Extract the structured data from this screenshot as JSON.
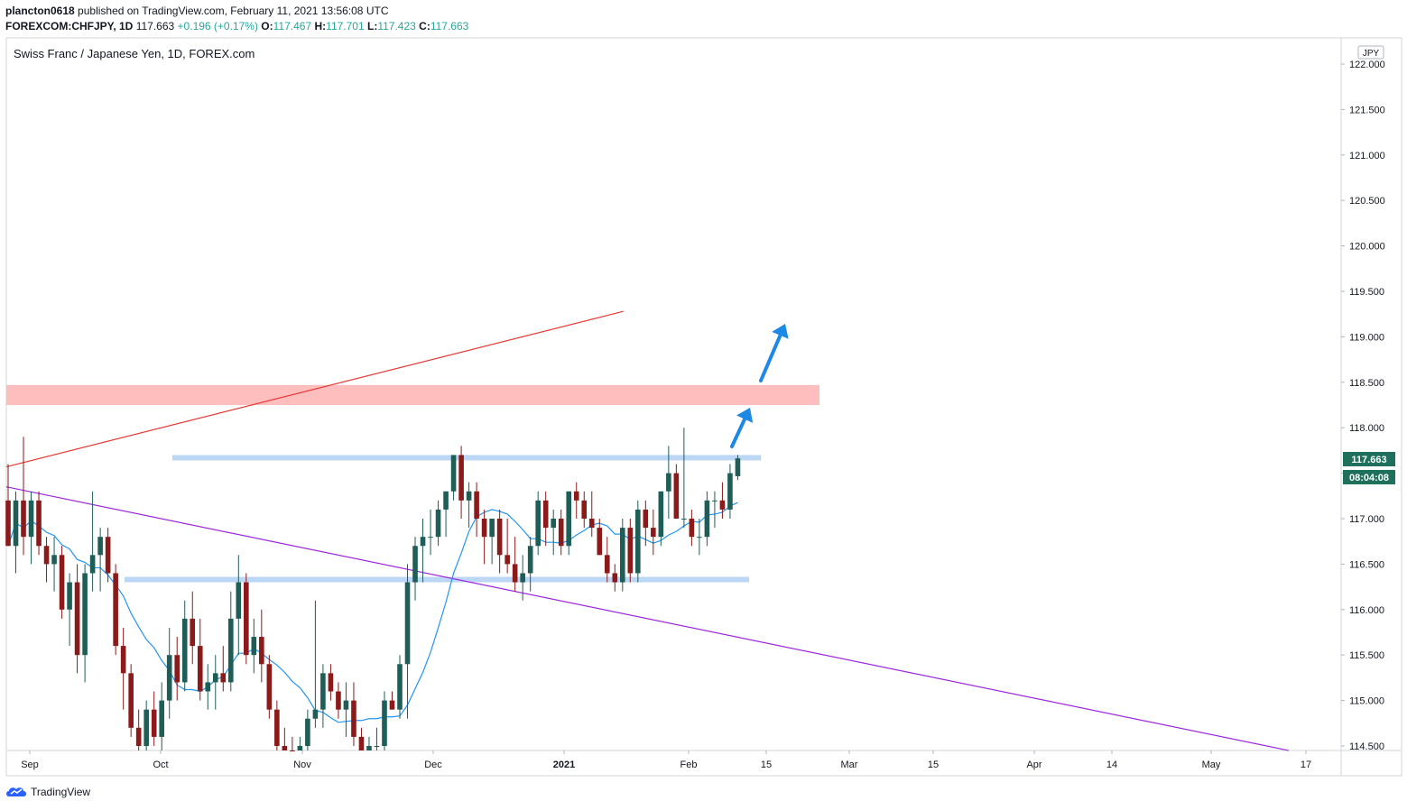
{
  "header": {
    "author": "plancton0618",
    "published_text": "published on TradingView.com, February 11, 2021 13:56:08 UTC",
    "symbol": "FOREXCOM:CHFJPY, 1D",
    "last": "117.663",
    "change": "+0.196 (+0.17%)",
    "o_label": "O:",
    "o_value": "117.467",
    "h_label": "H:",
    "h_value": "117.701",
    "l_label": "L:",
    "l_value": "117.423",
    "c_label": "C:",
    "c_value": "117.663"
  },
  "legend_title": "Swiss Franc / Japanese Yen, 1D, FOREX.com",
  "currency_badge": "JPY",
  "price_badge": "117.663",
  "countdown_badge": "08:04:08",
  "footer": {
    "brand": "TradingView"
  },
  "colors": {
    "up": "#26a69a",
    "down": "#ef5350",
    "candle_up": "#1e5e56",
    "candle_down": "#8b1a1a",
    "ma": "#2196f3",
    "resistance_zone": "#ffb3b3",
    "trendline_red": "#e53935",
    "trendline_purple": "#9c27e0",
    "support_band": "#bcd6f5",
    "arrow": "#1e88e5"
  },
  "chart_data": {
    "type": "candlestick",
    "title": "Swiss Franc / Japanese Yen, 1D, FOREX.com",
    "y_axis": {
      "ticks": [
        "122.000",
        "121.500",
        "121.000",
        "120.500",
        "120.000",
        "119.500",
        "119.000",
        "118.500",
        "118.000",
        "117.500",
        "117.000",
        "116.500",
        "116.000",
        "115.500",
        "115.000",
        "114.500"
      ],
      "ylim": [
        114.5,
        122.1
      ]
    },
    "x_axis": {
      "ticks": [
        "Sep",
        "Oct",
        "Nov",
        "Dec",
        "2021",
        "Feb",
        "15",
        "Mar",
        "15",
        "Apr",
        "14",
        "May",
        "17"
      ]
    },
    "ohlc": [
      [
        117.2,
        117.6,
        116.7,
        116.7
      ],
      [
        116.7,
        117.3,
        116.4,
        117.2
      ],
      [
        117.2,
        117.9,
        116.6,
        116.8
      ],
      [
        116.8,
        117.3,
        116.5,
        117.2
      ],
      [
        117.2,
        117.3,
        116.6,
        116.7
      ],
      [
        116.7,
        116.8,
        116.3,
        116.5
      ],
      [
        116.5,
        116.8,
        116.2,
        116.6
      ],
      [
        116.6,
        116.7,
        115.9,
        116.0
      ],
      [
        116.0,
        116.4,
        115.6,
        116.3
      ],
      [
        116.3,
        116.5,
        115.3,
        115.5
      ],
      [
        115.5,
        116.5,
        115.2,
        116.4
      ],
      [
        116.4,
        117.3,
        116.2,
        116.6
      ],
      [
        116.6,
        116.9,
        116.2,
        116.8
      ],
      [
        116.8,
        116.9,
        116.3,
        116.4
      ],
      [
        116.4,
        116.5,
        115.5,
        115.6
      ],
      [
        115.6,
        115.8,
        114.9,
        115.3
      ],
      [
        115.3,
        115.4,
        114.6,
        114.7
      ],
      [
        114.7,
        114.9,
        114.3,
        114.5
      ],
      [
        114.5,
        115.0,
        114.3,
        114.9
      ],
      [
        114.9,
        115.1,
        114.5,
        114.6
      ],
      [
        114.6,
        115.2,
        114.4,
        115.0
      ],
      [
        115.0,
        115.8,
        114.8,
        115.5
      ],
      [
        115.5,
        115.7,
        115.0,
        115.2
      ],
      [
        115.2,
        116.1,
        115.1,
        115.9
      ],
      [
        115.9,
        116.2,
        115.4,
        115.6
      ],
      [
        115.6,
        115.9,
        115.0,
        115.1
      ],
      [
        115.1,
        115.4,
        114.9,
        115.2
      ],
      [
        115.2,
        115.5,
        114.9,
        115.3
      ],
      [
        115.3,
        115.6,
        115.1,
        115.2
      ],
      [
        115.2,
        116.2,
        115.1,
        115.9
      ],
      [
        115.9,
        116.6,
        115.5,
        116.3
      ],
      [
        116.3,
        116.4,
        115.4,
        115.5
      ],
      [
        115.5,
        115.9,
        115.3,
        115.7
      ],
      [
        115.7,
        116.0,
        115.2,
        115.4
      ],
      [
        115.4,
        115.5,
        114.8,
        114.9
      ],
      [
        114.9,
        115.0,
        114.4,
        114.5
      ],
      [
        114.5,
        114.7,
        114.2,
        114.4
      ],
      [
        114.4,
        114.6,
        114.1,
        114.3
      ],
      [
        114.3,
        114.6,
        114.1,
        114.5
      ],
      [
        114.5,
        114.9,
        114.4,
        114.8
      ],
      [
        114.8,
        116.1,
        114.7,
        114.9
      ],
      [
        114.9,
        115.4,
        114.7,
        115.3
      ],
      [
        115.3,
        115.4,
        115.0,
        115.1
      ],
      [
        115.1,
        115.2,
        114.8,
        114.9
      ],
      [
        114.9,
        115.2,
        114.6,
        115.0
      ],
      [
        115.0,
        115.2,
        114.5,
        114.6
      ],
      [
        114.6,
        114.7,
        114.3,
        114.4
      ],
      [
        114.4,
        114.6,
        114.3,
        114.5
      ],
      [
        114.5,
        114.7,
        114.4,
        114.5
      ],
      [
        114.5,
        115.1,
        114.4,
        115.0
      ],
      [
        115.0,
        115.1,
        114.9,
        114.9
      ],
      [
        114.9,
        115.5,
        114.8,
        115.4
      ],
      [
        115.4,
        116.5,
        114.8,
        116.3
      ],
      [
        116.3,
        116.8,
        116.1,
        116.7
      ],
      [
        116.7,
        117.0,
        116.3,
        116.8
      ],
      [
        116.8,
        117.1,
        116.6,
        116.8
      ],
      [
        116.8,
        117.2,
        116.7,
        117.1
      ],
      [
        117.1,
        117.3,
        116.8,
        117.3
      ],
      [
        117.3,
        117.7,
        117.2,
        117.7
      ],
      [
        117.7,
        117.8,
        117.0,
        117.2
      ],
      [
        117.2,
        117.4,
        116.9,
        117.3
      ],
      [
        117.3,
        117.4,
        116.8,
        117.0
      ],
      [
        117.0,
        117.1,
        116.5,
        116.8
      ],
      [
        116.8,
        117.0,
        116.5,
        117.0
      ],
      [
        117.0,
        117.1,
        116.4,
        116.6
      ],
      [
        116.6,
        117.0,
        116.4,
        116.5
      ],
      [
        116.5,
        116.8,
        116.2,
        116.3
      ],
      [
        116.3,
        116.6,
        116.1,
        116.4
      ],
      [
        116.4,
        116.8,
        116.2,
        116.7
      ],
      [
        116.7,
        117.3,
        116.6,
        117.2
      ],
      [
        117.2,
        117.3,
        116.7,
        116.9
      ],
      [
        116.9,
        117.1,
        116.6,
        117.0
      ],
      [
        117.0,
        117.1,
        116.6,
        116.7
      ],
      [
        116.7,
        117.3,
        116.6,
        117.3
      ],
      [
        117.3,
        117.4,
        117.0,
        117.2
      ],
      [
        117.2,
        117.3,
        116.9,
        117.0
      ],
      [
        117.0,
        117.3,
        116.8,
        116.9
      ],
      [
        116.9,
        117.0,
        116.6,
        116.6
      ],
      [
        116.6,
        116.8,
        116.3,
        116.4
      ],
      [
        116.4,
        116.5,
        116.2,
        116.3
      ],
      [
        116.3,
        117.0,
        116.2,
        116.9
      ],
      [
        116.9,
        117.0,
        116.3,
        116.4
      ],
      [
        116.4,
        117.2,
        116.3,
        117.1
      ],
      [
        117.1,
        117.2,
        116.7,
        116.9
      ],
      [
        116.9,
        117.1,
        116.6,
        116.8
      ],
      [
        116.8,
        117.3,
        116.7,
        117.3
      ],
      [
        117.3,
        117.8,
        117.0,
        117.5
      ],
      [
        117.5,
        117.6,
        117.0,
        117.0
      ],
      [
        117.0,
        118.0,
        116.9,
        117.0
      ],
      [
        117.0,
        117.1,
        116.7,
        116.8
      ],
      [
        116.8,
        117.0,
        116.6,
        116.8
      ],
      [
        116.8,
        117.3,
        116.7,
        117.2
      ],
      [
        117.2,
        117.3,
        116.9,
        117.2
      ],
      [
        117.2,
        117.4,
        117.0,
        117.1
      ],
      [
        117.1,
        117.6,
        117.0,
        117.5
      ],
      [
        117.467,
        117.701,
        117.423,
        117.663
      ]
    ],
    "moving_average": "MA",
    "annotations": {
      "resistance_zone": [
        118.25,
        118.47
      ],
      "upper_support_band": 117.67,
      "lower_support_band": 116.33,
      "trendline_red": [
        [
          0,
          117.57
        ],
        [
          68,
          119.28
        ]
      ],
      "trendline_purple": [
        [
          0,
          117.35
        ],
        [
          141,
          114.45
        ]
      ],
      "arrows": [
        "up-arrow-small",
        "up-arrow-large"
      ]
    }
  }
}
